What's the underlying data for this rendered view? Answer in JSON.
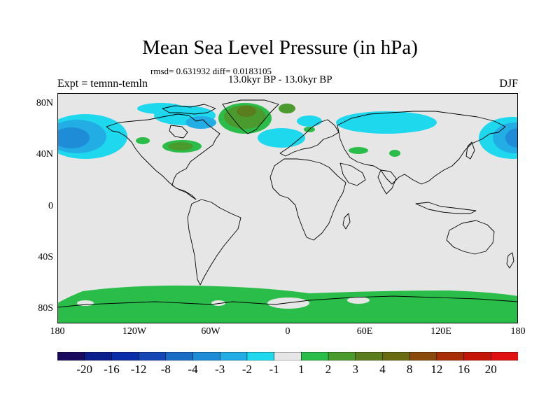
{
  "header": {
    "title": "Mean Sea Level Pressure (in hPa)",
    "stats": "rmsd= 0.631932 diff= 0.0183105",
    "period": "13.0kyr BP - 13.0kyr BP",
    "experiment": "Expt = temnn-temln",
    "season": "DJF"
  },
  "axes": {
    "lat_labels": [
      "80N",
      "40N",
      "0",
      "40S",
      "80S"
    ],
    "lon_labels": [
      "180",
      "120W",
      "60W",
      "0",
      "60E",
      "120E",
      "180"
    ]
  },
  "colorbar": {
    "labels": [
      "-20",
      "-16",
      "-12",
      "-8",
      "-4",
      "-3",
      "-2",
      "-1",
      "1",
      "2",
      "3",
      "4",
      "8",
      "12",
      "16",
      "20"
    ],
    "colors": [
      "#1a0a5e",
      "#0a1f8c",
      "#0a2ea8",
      "#1446b4",
      "#1a6cc4",
      "#1e8cd6",
      "#22aee4",
      "#1ed8ee",
      "#e6e6e6",
      "#2bbd4a",
      "#4a9a2e",
      "#5a7d1e",
      "#6a6a10",
      "#8a4a0c",
      "#a82e08",
      "#c41606",
      "#e01010"
    ]
  },
  "map_colors": {
    "ocean": "#e6e6e6",
    "coast": "#000000"
  }
}
